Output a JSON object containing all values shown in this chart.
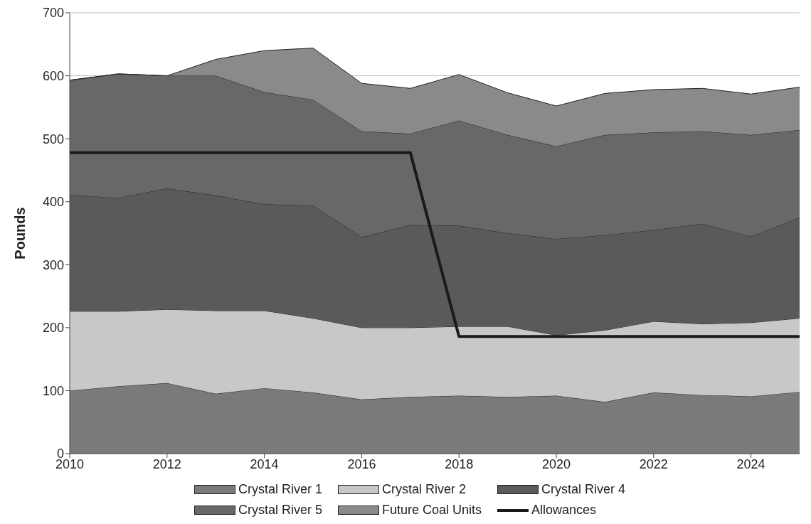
{
  "chart_data": {
    "type": "area",
    "stacked": true,
    "ylabel": "Pounds",
    "x": [
      2010,
      2011,
      2012,
      2013,
      2014,
      2015,
      2016,
      2017,
      2018,
      2019,
      2020,
      2021,
      2022,
      2023,
      2024,
      2025
    ],
    "xlim": [
      2010,
      2025
    ],
    "xticks": [
      2010,
      2012,
      2014,
      2016,
      2018,
      2020,
      2022,
      2024
    ],
    "ylim": [
      0,
      700
    ],
    "yticks": [
      0,
      100,
      200,
      300,
      400,
      500,
      600,
      700
    ],
    "grid": "y",
    "legend": "bottom",
    "marker": "none",
    "line_style": "solid",
    "series": [
      {
        "name": "Crystal River 1",
        "color": "#7a7a7a",
        "values": [
          100,
          107,
          112,
          95,
          104,
          97,
          86,
          90,
          92,
          90,
          92,
          82,
          97,
          93,
          91,
          98
        ]
      },
      {
        "name": "Crystal River 2",
        "color": "#c8c8c8",
        "values": [
          126,
          119,
          117,
          132,
          123,
          118,
          114,
          110,
          110,
          112,
          96,
          114,
          113,
          113,
          117,
          117
        ]
      },
      {
        "name": "Crystal River 4",
        "color": "#5a5a5a",
        "values": [
          185,
          180,
          192,
          183,
          169,
          179,
          144,
          163,
          160,
          148,
          153,
          151,
          145,
          159,
          137,
          160
        ]
      },
      {
        "name": "Crystal River 5",
        "color": "#686868",
        "values": [
          182,
          197,
          179,
          190,
          178,
          168,
          168,
          145,
          167,
          156,
          147,
          159,
          155,
          147,
          161,
          139
        ]
      },
      {
        "name": "Future Coal Units",
        "color": "#8a8a8a",
        "values": [
          0,
          0,
          0,
          26,
          66,
          82,
          76,
          72,
          73,
          67,
          64,
          66,
          68,
          68,
          65,
          68
        ]
      },
      {
        "name": "Allowances",
        "type": "line",
        "color": "#1a1a1a",
        "values": [
          478,
          478,
          478,
          478,
          478,
          478,
          478,
          478,
          186,
          186,
          186,
          186,
          186,
          186,
          186,
          186
        ]
      }
    ]
  }
}
